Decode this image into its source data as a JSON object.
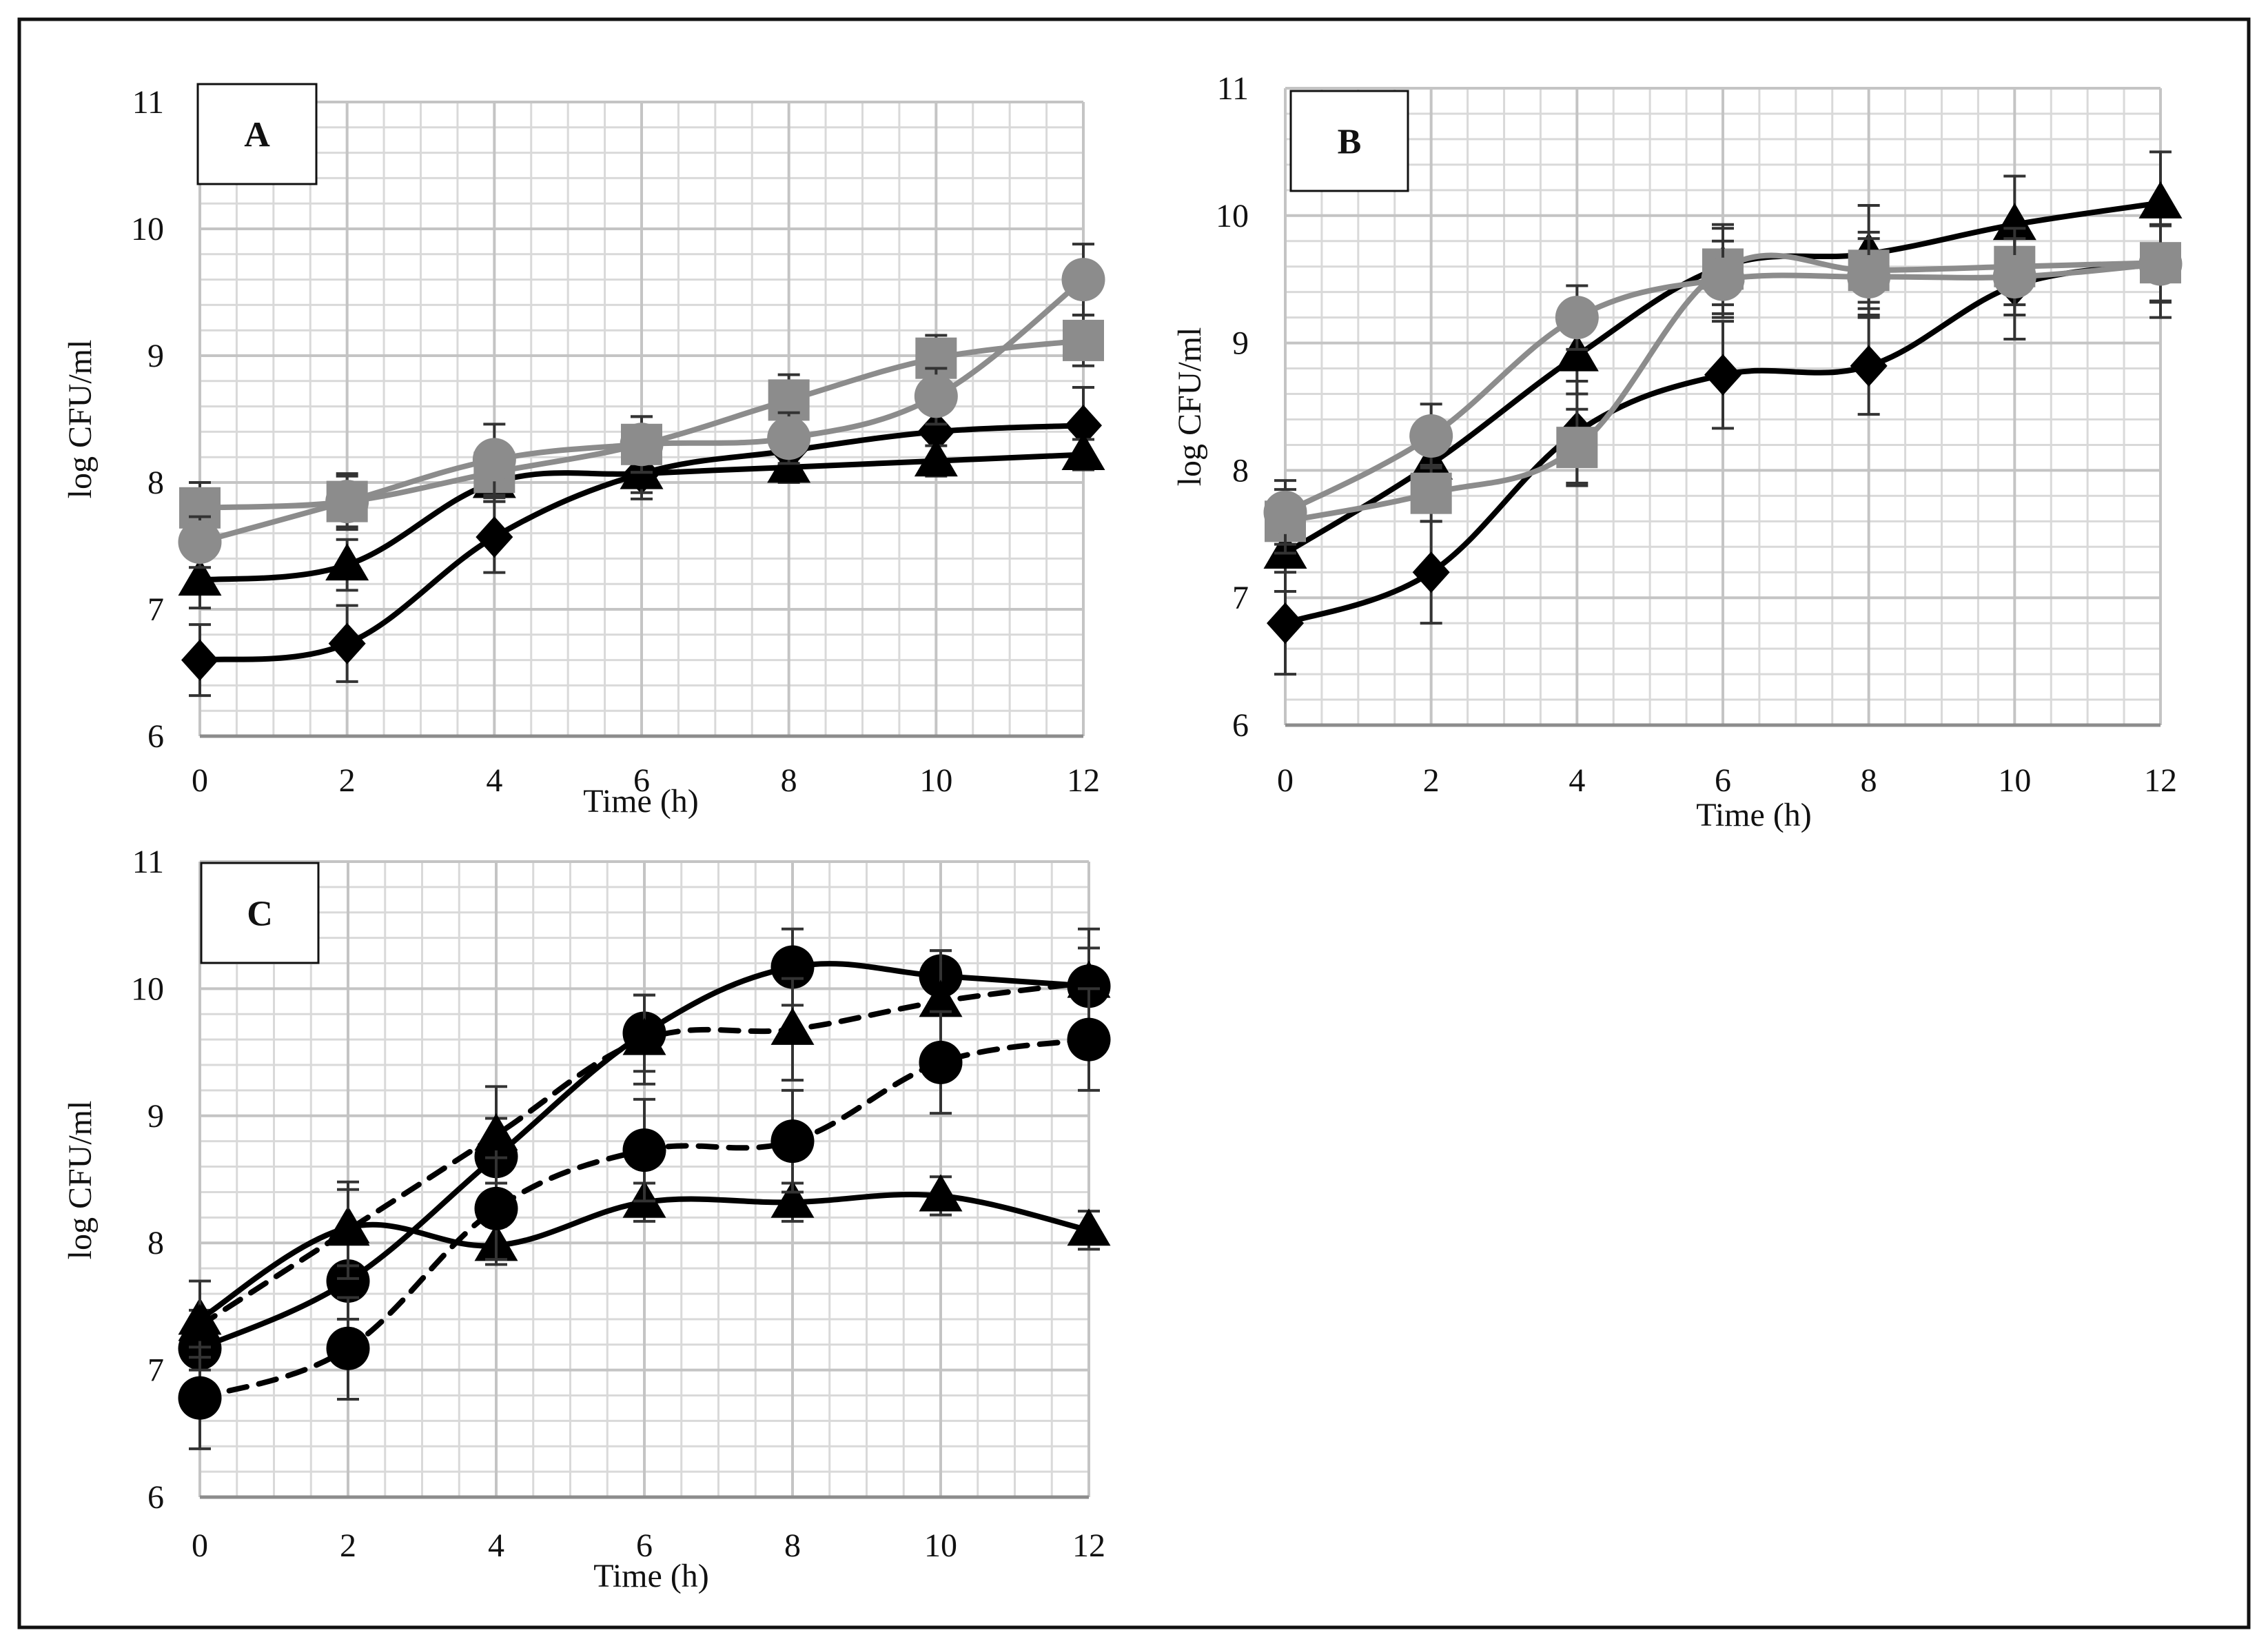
{
  "figure": {
    "description_colors": {
      "black": "#000000",
      "gray": "#8c8c8c",
      "grid": "#d9d9d9",
      "major_grid": "#c4c4c4"
    }
  },
  "chart_data": [
    {
      "id": "A",
      "type": "line",
      "title": "A",
      "xlabel": "Time (h)",
      "ylabel": "log CFU/ml",
      "xlim": [
        0,
        12
      ],
      "ylim": [
        6,
        11
      ],
      "xticks": [
        0,
        2,
        4,
        6,
        8,
        10,
        12
      ],
      "yticks": [
        6,
        7,
        8,
        9,
        10,
        11
      ],
      "grid": true,
      "x": [
        0,
        2,
        4,
        6,
        8,
        10,
        12
      ],
      "series": [
        {
          "name": "diamond",
          "marker": "diamond",
          "color": "#000000",
          "dash": false,
          "values": [
            6.6,
            6.73,
            7.57,
            8.07,
            8.25,
            8.4,
            8.45
          ],
          "errors": [
            0.28,
            0.3,
            0.28,
            0.2,
            0.2,
            0.25,
            0.3
          ]
        },
        {
          "name": "triangle",
          "marker": "triangle",
          "color": "#000000",
          "dash": false,
          "values": [
            7.23,
            7.35,
            8.0,
            8.07,
            8.12,
            8.17,
            8.22
          ],
          "errors": [
            0.22,
            0.2,
            0.15,
            0.15,
            0.12,
            0.12,
            0.12
          ]
        },
        {
          "name": "square",
          "marker": "square",
          "color": "#8c8c8c",
          "dash": false,
          "values": [
            7.8,
            7.85,
            8.08,
            8.3,
            8.65,
            8.98,
            9.12
          ],
          "errors": [
            0.2,
            0.22,
            0.2,
            0.22,
            0.2,
            0.18,
            0.2
          ]
        },
        {
          "name": "circle",
          "marker": "circle",
          "color": "#8c8c8c",
          "dash": false,
          "values": [
            7.53,
            7.85,
            8.18,
            8.3,
            8.35,
            8.68,
            9.6
          ],
          "errors": [
            0.2,
            0.2,
            0.28,
            0.22,
            0.2,
            0.22,
            0.28
          ]
        }
      ]
    },
    {
      "id": "B",
      "type": "line",
      "title": "B",
      "xlabel": "Time (h)",
      "ylabel": "log CFU/ml",
      "xlim": [
        0,
        12
      ],
      "ylim": [
        6,
        11
      ],
      "xticks": [
        0,
        2,
        4,
        6,
        8,
        10,
        12
      ],
      "yticks": [
        6,
        7,
        8,
        9,
        10,
        11
      ],
      "grid": true,
      "x": [
        0,
        2,
        4,
        6,
        8,
        10,
        12
      ],
      "series": [
        {
          "name": "diamond",
          "marker": "diamond",
          "color": "#000000",
          "dash": false,
          "values": [
            6.8,
            7.2,
            8.3,
            8.75,
            8.82,
            9.45,
            9.62
          ],
          "errors": [
            0.4,
            0.4,
            0.4,
            0.42,
            0.38,
            0.42,
            0.42
          ]
        },
        {
          "name": "triangle",
          "marker": "triangle",
          "color": "#000000",
          "dash": false,
          "values": [
            7.35,
            8.05,
            8.9,
            9.6,
            9.7,
            9.93,
            10.1
          ],
          "errors": [
            0.3,
            0.3,
            0.3,
            0.3,
            0.38,
            0.38,
            0.4
          ]
        },
        {
          "name": "square",
          "marker": "square",
          "color": "#8c8c8c",
          "dash": false,
          "values": [
            7.6,
            7.82,
            8.18,
            9.58,
            9.57,
            9.6,
            9.63
          ],
          "errors": [
            0.25,
            0.22,
            0.3,
            0.35,
            0.3,
            0.3,
            0.3
          ]
        },
        {
          "name": "circle",
          "marker": "circle",
          "color": "#8c8c8c",
          "dash": false,
          "values": [
            7.67,
            8.27,
            9.2,
            9.5,
            9.52,
            9.52,
            9.62
          ],
          "errors": [
            0.25,
            0.25,
            0.25,
            0.3,
            0.3,
            0.3,
            0.3
          ]
        }
      ]
    },
    {
      "id": "C",
      "type": "line",
      "title": "C",
      "xlabel": "Time (h)",
      "ylabel": "log CFU/ml",
      "xlim": [
        0,
        12
      ],
      "ylim": [
        6,
        11
      ],
      "xticks": [
        0,
        2,
        4,
        6,
        8,
        10,
        12
      ],
      "yticks": [
        6,
        7,
        8,
        9,
        10,
        11
      ],
      "grid": true,
      "x": [
        0,
        2,
        4,
        6,
        8,
        10,
        12
      ],
      "series": [
        {
          "name": "circle solid",
          "marker": "circle",
          "color": "#000000",
          "dash": false,
          "values": [
            7.17,
            7.7,
            8.68,
            9.65,
            10.17,
            10.1,
            10.02
          ],
          "errors": [
            0.3,
            0.3,
            0.3,
            0.3,
            0.3,
            0.2,
            0.3
          ]
        },
        {
          "name": "triangle solid",
          "marker": "triangle",
          "color": "#000000",
          "dash": false,
          "values": [
            7.4,
            8.12,
            7.98,
            8.32,
            8.32,
            8.37,
            8.1
          ],
          "errors": [
            0.3,
            0.3,
            0.15,
            0.15,
            0.15,
            0.15,
            0.15
          ]
        },
        {
          "name": "triangle dashed",
          "marker": "triangle",
          "color": "#000000",
          "dash": true,
          "values": [
            7.35,
            8.1,
            8.85,
            9.6,
            9.68,
            9.9,
            10.05
          ],
          "errors": [
            0.35,
            0.38,
            0.38,
            0.35,
            0.4,
            0.4,
            0.42
          ]
        },
        {
          "name": "circle dashed",
          "marker": "circle",
          "color": "#000000",
          "dash": true,
          "values": [
            6.78,
            7.17,
            8.27,
            8.73,
            8.8,
            9.42,
            9.6
          ],
          "errors": [
            0.4,
            0.4,
            0.4,
            0.4,
            0.4,
            0.4,
            0.4
          ]
        }
      ]
    }
  ]
}
